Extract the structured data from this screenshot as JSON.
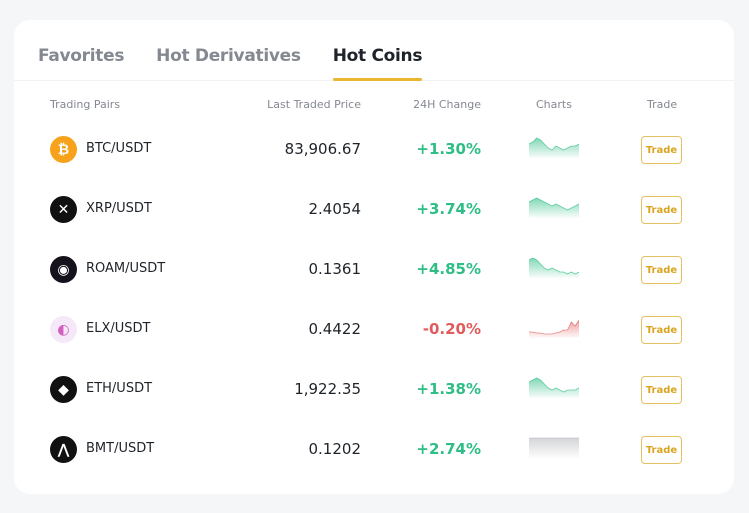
{
  "tabs": [
    {
      "label": "Favorites"
    },
    {
      "label": "Hot Derivatives"
    },
    {
      "label": "Hot Coins"
    }
  ],
  "active_tab": "Hot Coins",
  "headers": {
    "pairs": "Trading Pairs",
    "price": "Last Traded Price",
    "change": "24H Change",
    "charts": "Charts",
    "trade": "Trade"
  },
  "colors": {
    "accent": "#e8b631",
    "up": "#2ebd85",
    "down": "#e05c5c",
    "flat": "#b7b9bf"
  },
  "rows": [
    {
      "pair": "BTC/USDT",
      "price": "83,906.67",
      "change": "+1.30%",
      "dir": "up",
      "icon": "bitcoin-icon",
      "icon_bg": "#f7a21b",
      "glyph": "₿",
      "trade": "Trade",
      "spark": [
        6,
        7,
        9,
        8,
        6,
        4,
        3,
        5,
        4,
        3,
        4,
        5,
        5,
        6
      ]
    },
    {
      "pair": "XRP/USDT",
      "price": "2.4054",
      "change": "+3.74%",
      "dir": "up",
      "icon": "xrp-icon",
      "icon_bg": "#111",
      "glyph": "✕",
      "trade": "Trade",
      "spark": [
        7,
        8,
        9,
        8,
        7,
        6,
        5,
        6,
        5,
        4,
        3,
        4,
        5,
        6
      ]
    },
    {
      "pair": "ROAM/USDT",
      "price": "0.1361",
      "change": "+4.85%",
      "dir": "up",
      "icon": "roam-icon",
      "icon_bg": "#15121c",
      "glyph": "◉",
      "trade": "Trade",
      "spark": [
        8,
        9,
        8,
        6,
        4,
        3,
        4,
        3,
        2,
        2,
        1,
        2,
        1,
        2
      ]
    },
    {
      "pair": "ELX/USDT",
      "price": "0.4422",
      "change": "-0.20%",
      "dir": "down",
      "icon": "elx-icon",
      "icon_bg": "#f5e8f8",
      "glyph": "◐",
      "trade": "Trade",
      "spark": [
        2,
        2,
        1.5,
        1.5,
        1,
        1,
        1,
        1.5,
        2,
        3,
        3,
        7,
        5,
        8
      ]
    },
    {
      "pair": "ETH/USDT",
      "price": "1,922.35",
      "change": "+1.38%",
      "dir": "up",
      "icon": "ethereum-icon",
      "icon_bg": "#111",
      "glyph": "◆",
      "trade": "Trade",
      "spark": [
        7,
        8,
        9,
        8,
        6,
        4,
        3,
        4,
        3,
        2,
        3,
        3,
        3,
        4
      ]
    },
    {
      "pair": "BMT/USDT",
      "price": "0.1202",
      "change": "+2.74%",
      "dir": "flat",
      "icon": "bmt-icon",
      "icon_bg": "#111",
      "glyph": "⋀",
      "trade": "Trade",
      "spark": [
        9,
        9,
        9,
        9,
        9,
        9,
        9,
        9,
        9,
        9,
        9,
        9,
        9,
        9
      ]
    }
  ]
}
